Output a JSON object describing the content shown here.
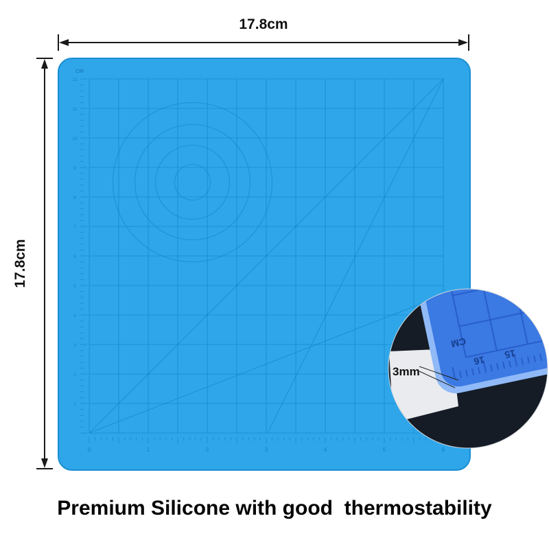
{
  "product": {
    "caption": "Premium Silicone with good  thermostability"
  },
  "dimensions": {
    "width_label": "17.8cm",
    "height_label": "17.8cm",
    "thickness_label": "3mm"
  },
  "mat": {
    "surface_color": "#2FA6EA",
    "edge_color": "#1B8ED2",
    "print_color": "#1180C4",
    "unit_label": "CM",
    "bottom_scale": [
      "0",
      "1",
      "2",
      "3",
      "4",
      "5",
      "6"
    ],
    "left_scale": [
      "12",
      "11",
      "10",
      "9",
      "8",
      "7",
      "6",
      "5",
      "4",
      "3",
      "2",
      "1"
    ]
  },
  "inset": {
    "unit_label": "CM",
    "ruler_numbers": [
      "16",
      "15"
    ],
    "mat_top_color": "#3B79E3",
    "mat_edge_color": "#8FB9F7",
    "background_color": "#151C26",
    "light_area_color": "#E9EBEE"
  }
}
